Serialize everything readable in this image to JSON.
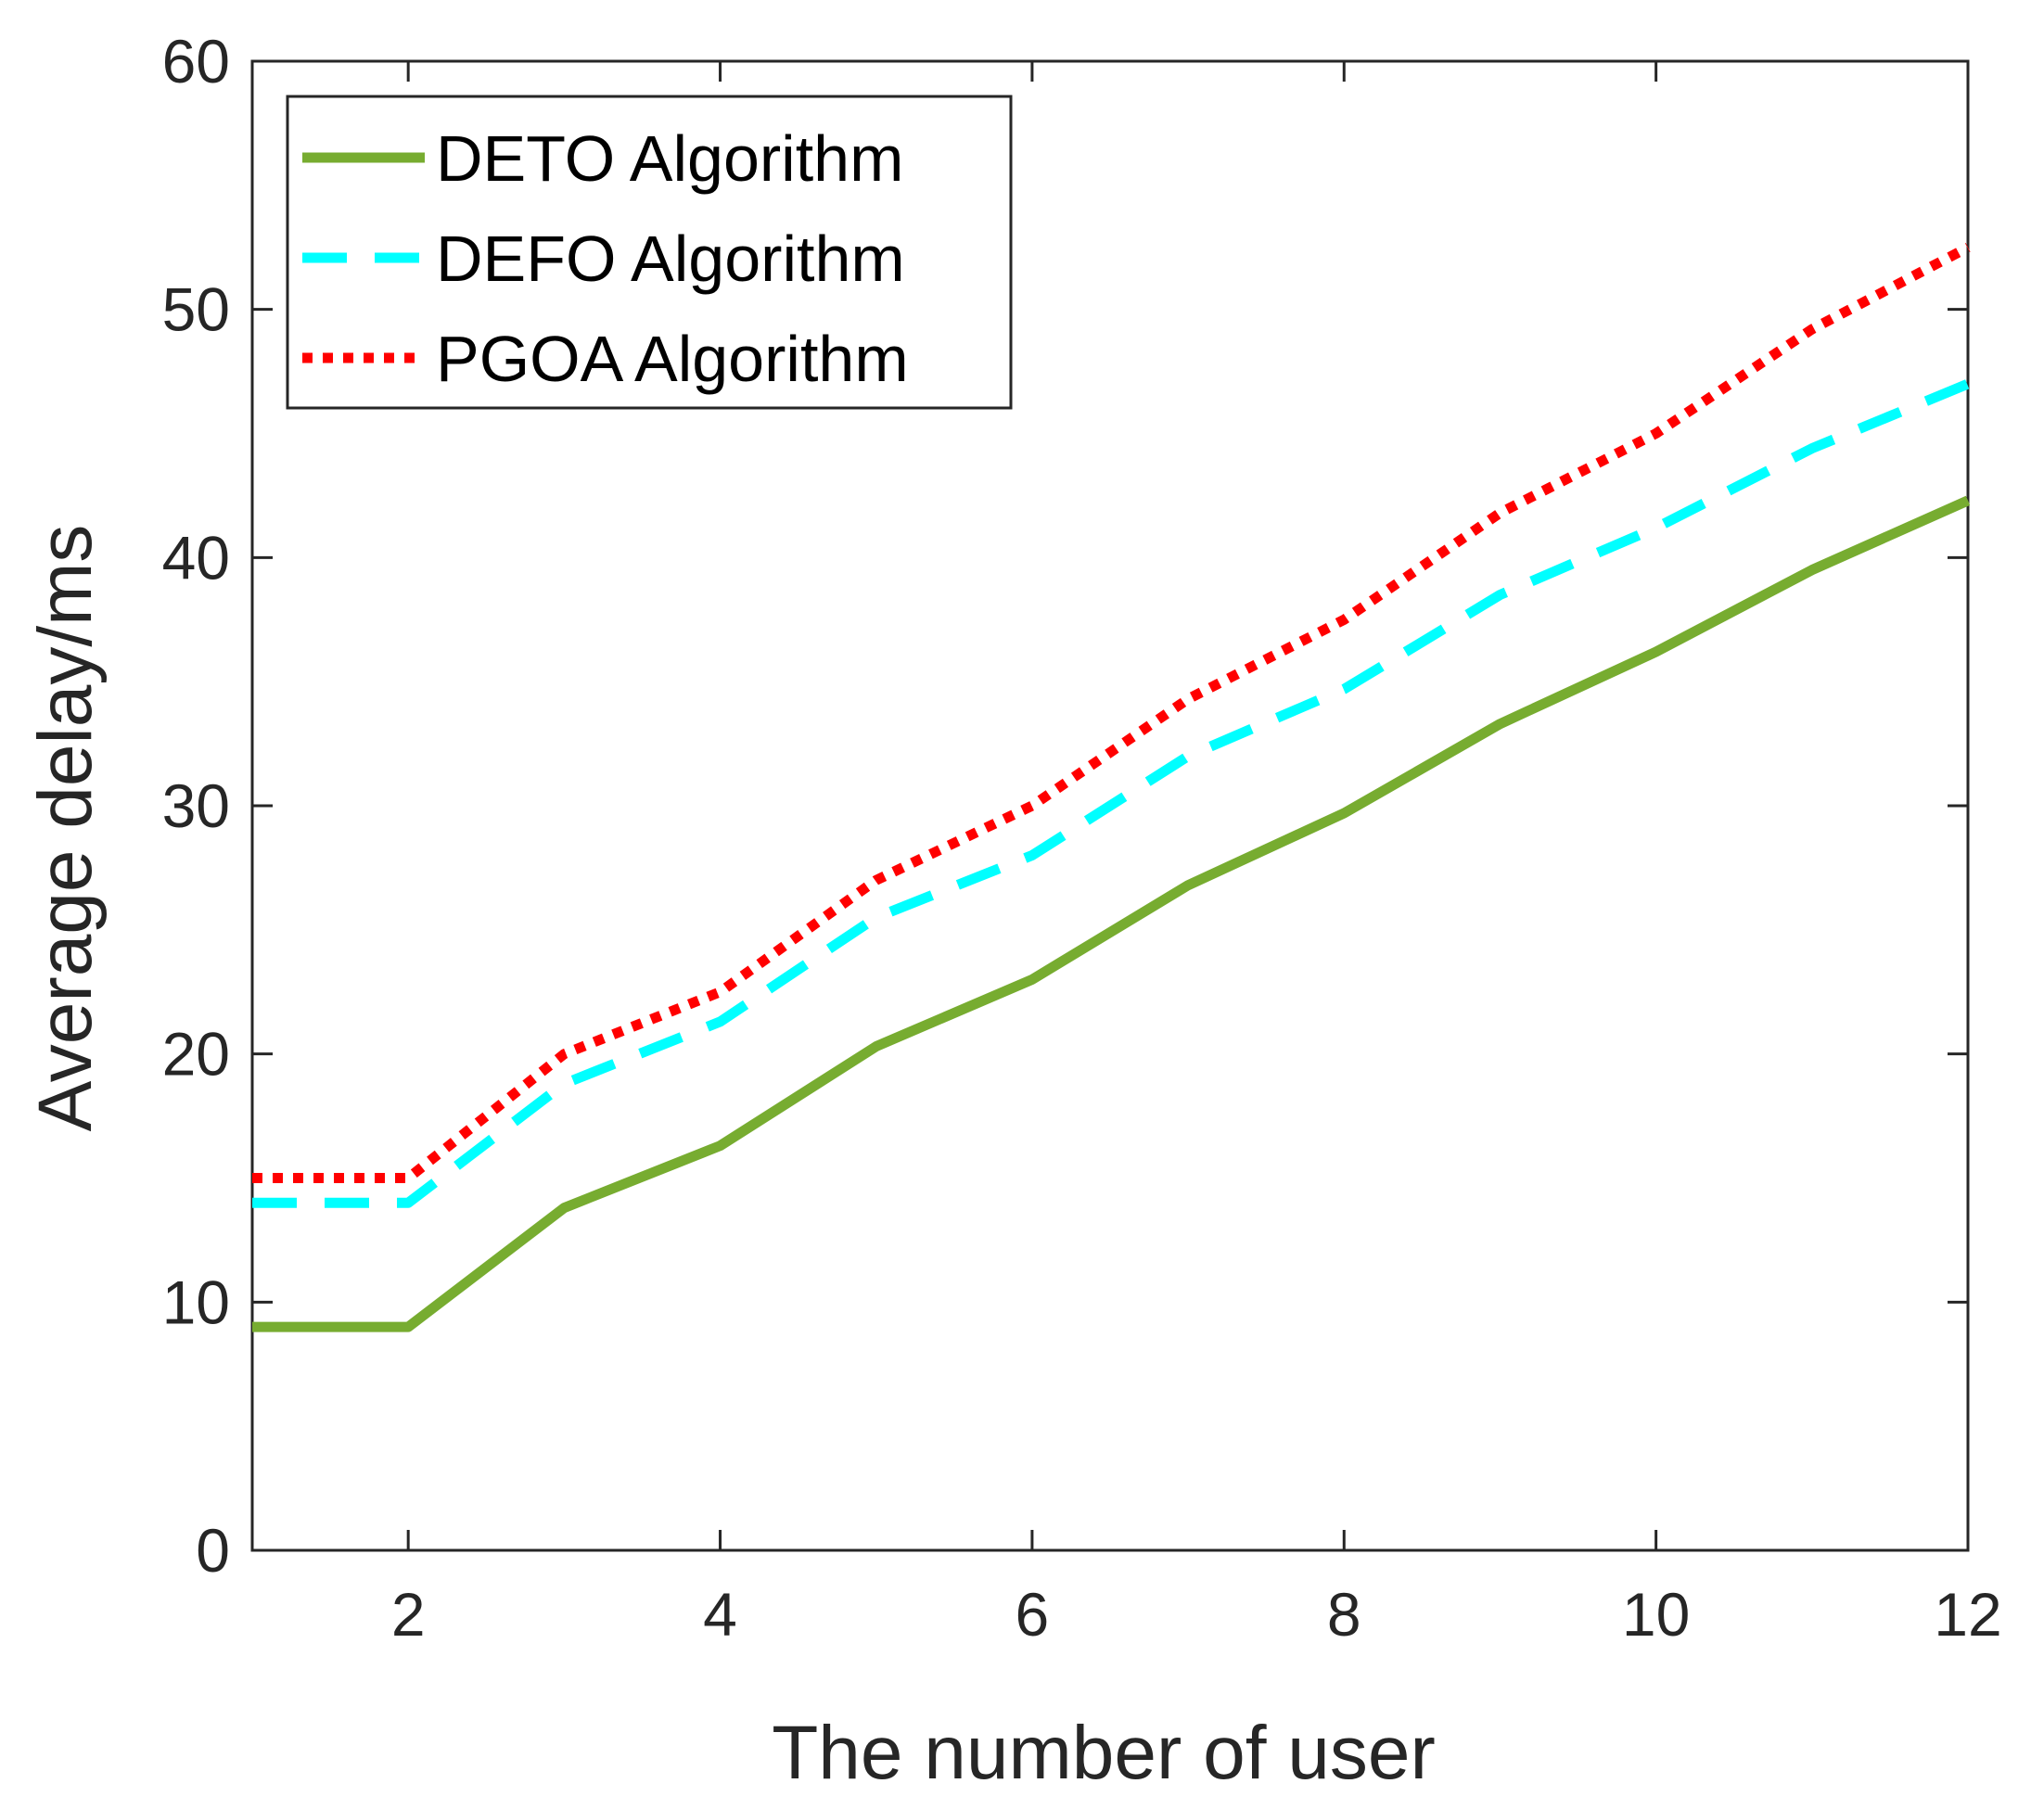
{
  "chart_data": {
    "type": "line",
    "title": "",
    "xlabel": "The number of user",
    "ylabel": "Average delay/ms",
    "xlim": [
      1,
      12
    ],
    "ylim": [
      0,
      60
    ],
    "xticks": [
      2,
      4,
      6,
      8,
      10,
      12
    ],
    "yticks": [
      0,
      10,
      20,
      30,
      40,
      50,
      60
    ],
    "grid": false,
    "legend_position": "top-left",
    "x": [
      1,
      2,
      3,
      4,
      5,
      6,
      7,
      8,
      9,
      10,
      11,
      12
    ],
    "series": [
      {
        "name": "DETO Algorithm",
        "color": "#77ac30",
        "style": "solid",
        "values": [
          9,
          9,
          13.8,
          16.3,
          20.3,
          23,
          26.8,
          29.7,
          33.3,
          36.2,
          39.5,
          42.3
        ]
      },
      {
        "name": "DEFO Algorithm",
        "color": "#00ffff",
        "style": "dashed",
        "values": [
          14,
          14,
          18.8,
          21.3,
          25.5,
          28,
          32,
          34.7,
          38.5,
          41.2,
          44.4,
          47
        ]
      },
      {
        "name": "PGOA Algorithm",
        "color": "#ff0000",
        "style": "dotted",
        "values": [
          15,
          15,
          20,
          22.5,
          27,
          30,
          34.3,
          37.5,
          41.8,
          45,
          49.2,
          52.5
        ]
      }
    ]
  }
}
